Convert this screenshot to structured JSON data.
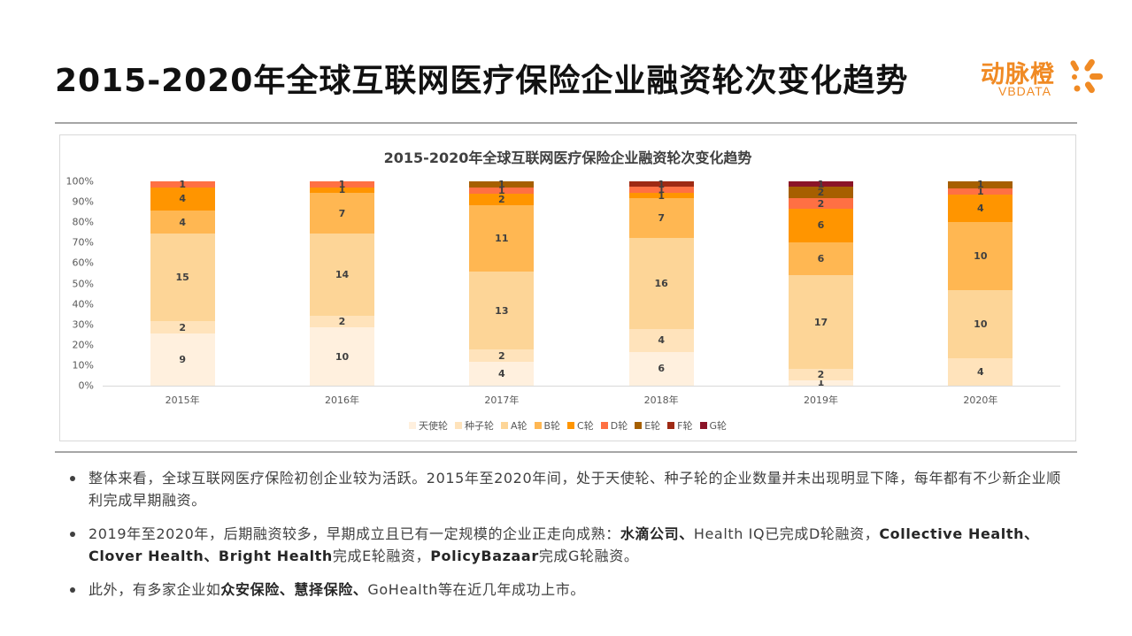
{
  "header": {
    "title": "2015-2020年全球互联网医疗保险企业融资轮次变化趋势",
    "logo": {
      "cn": "动脉橙",
      "en": "VBDATA",
      "color": "#f08a24"
    }
  },
  "chart_data": {
    "type": "bar",
    "stacked": "percent",
    "title": "2015-2020年全球互联网医疗保险企业融资轮次变化趋势",
    "xlabel": "",
    "ylabel": "",
    "ylim": [
      0,
      100
    ],
    "yticks": [
      "0%",
      "10%",
      "20%",
      "30%",
      "40%",
      "50%",
      "60%",
      "70%",
      "80%",
      "90%",
      "100%"
    ],
    "categories": [
      "2015年",
      "2016年",
      "2017年",
      "2018年",
      "2019年",
      "2020年"
    ],
    "legend_position": "bottom",
    "grid": false,
    "series": [
      {
        "name": "天使轮",
        "color": "#fff0de",
        "values": [
          9,
          10,
          4,
          6,
          1,
          0
        ]
      },
      {
        "name": "种子轮",
        "color": "#ffe3bb",
        "values": [
          2,
          2,
          2,
          4,
          2,
          4
        ]
      },
      {
        "name": "A轮",
        "color": "#fdd597",
        "values": [
          15,
          14,
          13,
          16,
          17,
          10
        ]
      },
      {
        "name": "B轮",
        "color": "#ffb752",
        "values": [
          4,
          7,
          11,
          7,
          6,
          10
        ]
      },
      {
        "name": "C轮",
        "color": "#ff9500",
        "values": [
          4,
          1,
          2,
          1,
          6,
          4
        ]
      },
      {
        "name": "D轮",
        "color": "#ff7043",
        "values": [
          1,
          1,
          1,
          1,
          2,
          1
        ]
      },
      {
        "name": "E轮",
        "color": "#a65f00",
        "values": [
          0,
          0,
          1,
          0,
          2,
          1
        ]
      },
      {
        "name": "F轮",
        "color": "#9e2a14",
        "values": [
          0,
          0,
          0,
          1,
          0,
          0
        ]
      },
      {
        "name": "G轮",
        "color": "#8b1428",
        "values": [
          0,
          0,
          0,
          0,
          1,
          0
        ]
      }
    ]
  },
  "bullets": [
    {
      "parts": [
        {
          "text": "整体来看，全球互联网医疗保险初创企业较为活跃。2015年至2020年间，处于天使轮、种子轮的企业数量并未出现明显下降，每年都有不少新企业顺利完成早期融资。",
          "bold": false
        }
      ]
    },
    {
      "parts": [
        {
          "text": "2019年至2020年，后期融资较多，早期成立且已有一定规模的企业正走向成熟：",
          "bold": false
        },
        {
          "text": "水滴公司、",
          "bold": true
        },
        {
          "text": "Health IQ已完成D轮融资，",
          "bold": false
        },
        {
          "text": "Collective Health、Clover Health、Bright Health",
          "bold": true
        },
        {
          "text": "完成E轮融资，",
          "bold": false
        },
        {
          "text": "PolicyBazaar",
          "bold": true
        },
        {
          "text": "完成G轮融资。",
          "bold": false
        }
      ]
    },
    {
      "parts": [
        {
          "text": "此外，有多家企业如",
          "bold": false
        },
        {
          "text": "众安保险、慧择保险、",
          "bold": true
        },
        {
          "text": "GoHealth等在近几年成功上市。",
          "bold": false
        }
      ]
    }
  ]
}
